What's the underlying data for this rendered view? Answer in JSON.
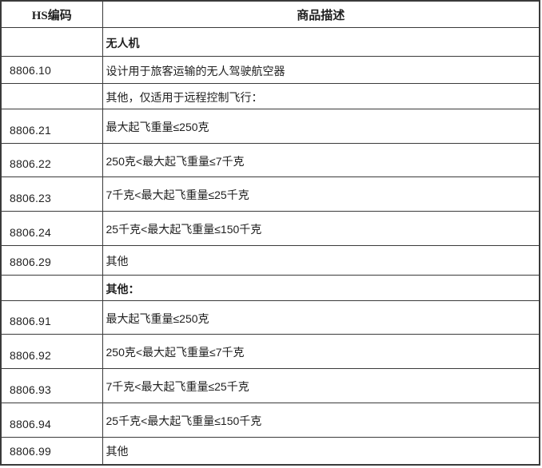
{
  "colors": {
    "border": "#3a3a3a",
    "text": "#1f1f1f",
    "background": "#ffffff"
  },
  "table": {
    "columns": [
      {
        "label": "HS编码"
      },
      {
        "label": "商品描述"
      }
    ],
    "rows": [
      {
        "code": "",
        "desc": "无人机",
        "bold": true
      },
      {
        "code": "8806.10",
        "desc": "设计用于旅客运输的无人驾驶航空器",
        "bold": false
      },
      {
        "code": "",
        "desc": "其他，仅适用于远程控制飞行：",
        "bold": false
      },
      {
        "code": "8806.21",
        "desc": "最大起飞重量≤250克",
        "bold": false
      },
      {
        "code": "8806.22",
        "desc": "250克<最大起飞重量≤7千克",
        "bold": false
      },
      {
        "code": "8806.23",
        "desc": "7千克<最大起飞重量≤25千克",
        "bold": false
      },
      {
        "code": "8806.24",
        "desc": "25千克<最大起飞重量≤150千克",
        "bold": false
      },
      {
        "code": "8806.29",
        "desc": "其他",
        "bold": false
      },
      {
        "code": "",
        "desc": "其他：",
        "bold": true
      },
      {
        "code": "8806.91",
        "desc": "最大起飞重量≤250克",
        "bold": false
      },
      {
        "code": "8806.92",
        "desc": "250克<最大起飞重量≤7千克",
        "bold": false
      },
      {
        "code": "8806.93",
        "desc": "7千克<最大起飞重量≤25千克",
        "bold": false
      },
      {
        "code": "8806.94",
        "desc": "25千克<最大起飞重量≤150千克",
        "bold": false
      },
      {
        "code": "8806.99",
        "desc": "其他",
        "bold": false
      }
    ]
  }
}
